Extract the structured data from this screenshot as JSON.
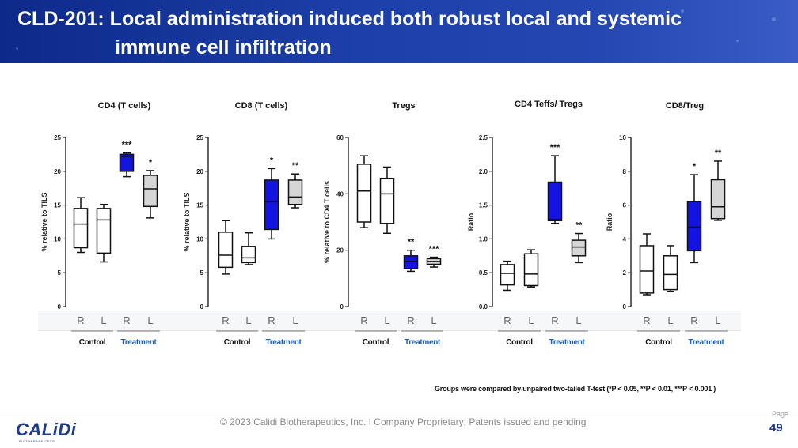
{
  "slide": {
    "title_line1": "CLD-201: Local administration induced both robust local and systemic",
    "title_line2": "immune cell infiltration",
    "footnote": "Groups were compared by unpaired two-tailed T-test (*P < 0.05, **P < 0.01, ***P < 0.001 )",
    "copyright": "© 2023 Calidi Biotherapeutics, Inc. I  Company Proprietary; Patents issued and pending",
    "page_label": "Page",
    "page_number": "49",
    "logo_text": "CALiDi",
    "logo_subtext": "BIOTHERAPEUTICS",
    "colors": {
      "banner": "#1d3fa8",
      "treatment_R": "#1414e0",
      "treatment_L": "#d6d6d6",
      "control": "#ffffff",
      "treatment_label": "#1a5fb4"
    }
  },
  "chart_data": [
    {
      "type": "box",
      "title": "CD4 (T cells)",
      "ylabel": "% relative to TILS",
      "ylim": [
        0,
        25
      ],
      "yticks": [
        0,
        5,
        10,
        15,
        20,
        25
      ],
      "groups": [
        "Control",
        "Treatment"
      ],
      "categories": [
        "R",
        "L",
        "R",
        "L"
      ],
      "boxes": [
        {
          "group": "Control",
          "cat": "R",
          "min": 8,
          "q1": 8.7,
          "median": 12.2,
          "q3": 14.5,
          "max": 16.1,
          "sig": ""
        },
        {
          "group": "Control",
          "cat": "L",
          "min": 6.6,
          "q1": 7.9,
          "median": 12.8,
          "q3": 14.5,
          "max": 15.1,
          "sig": ""
        },
        {
          "group": "Treatment",
          "cat": "R",
          "min": 19.2,
          "q1": 20,
          "median": 22.2,
          "q3": 22.5,
          "max": 22.7,
          "sig": "***"
        },
        {
          "group": "Treatment",
          "cat": "L",
          "min": 13.1,
          "q1": 14.8,
          "median": 17.4,
          "q3": 19.4,
          "max": 20.1,
          "sig": "*"
        }
      ]
    },
    {
      "type": "box",
      "title": "CD8 (T cells)",
      "ylabel": "% relative to TILS",
      "ylim": [
        0,
        25
      ],
      "yticks": [
        0,
        5,
        10,
        15,
        20,
        25
      ],
      "groups": [
        "Control",
        "Treatment"
      ],
      "categories": [
        "R",
        "L",
        "R",
        "L"
      ],
      "boxes": [
        {
          "group": "Control",
          "cat": "R",
          "min": 4.8,
          "q1": 5.8,
          "median": 7.6,
          "q3": 11,
          "max": 12.7,
          "sig": ""
        },
        {
          "group": "Control",
          "cat": "L",
          "min": 6.2,
          "q1": 6.5,
          "median": 7.2,
          "q3": 8.9,
          "max": 10.9,
          "sig": ""
        },
        {
          "group": "Treatment",
          "cat": "R",
          "min": 10,
          "q1": 11.4,
          "median": 15.5,
          "q3": 18.7,
          "max": 20.4,
          "sig": "*"
        },
        {
          "group": "Treatment",
          "cat": "L",
          "min": 14.6,
          "q1": 15.1,
          "median": 16.2,
          "q3": 18.7,
          "max": 19.6,
          "sig": "**"
        }
      ]
    },
    {
      "type": "box",
      "title": "Tregs",
      "ylabel": "% relative to CD4 T cells",
      "ylim": [
        0,
        60
      ],
      "yticks": [
        0,
        20,
        40,
        60
      ],
      "groups": [
        "Control",
        "Treatment"
      ],
      "categories": [
        "R",
        "L",
        "R",
        "L"
      ],
      "boxes": [
        {
          "group": "Control",
          "cat": "R",
          "min": 28,
          "q1": 30,
          "median": 41,
          "q3": 50.5,
          "max": 53.5,
          "sig": ""
        },
        {
          "group": "Control",
          "cat": "L",
          "min": 26,
          "q1": 29.5,
          "median": 40,
          "q3": 45.5,
          "max": 49.5,
          "sig": ""
        },
        {
          "group": "Treatment",
          "cat": "R",
          "min": 12.5,
          "q1": 13.5,
          "median": 16,
          "q3": 18,
          "max": 20,
          "sig": "**"
        },
        {
          "group": "Treatment",
          "cat": "L",
          "min": 14,
          "q1": 15,
          "median": 16,
          "q3": 17,
          "max": 17.5,
          "sig": "***"
        }
      ]
    },
    {
      "type": "box",
      "title": "CD4 Teffs/ Tregs",
      "ylabel": "Ratio",
      "ylim": [
        0,
        2.5
      ],
      "yticks": [
        0,
        0.5,
        1.0,
        1.5,
        2.0,
        2.5
      ],
      "ytick_labels": [
        "0.0",
        "0.5",
        "1.0",
        "1.5",
        "2.0",
        "2.5"
      ],
      "groups": [
        "Control",
        "Treatment"
      ],
      "categories": [
        "R",
        "L",
        "R",
        "L"
      ],
      "boxes": [
        {
          "group": "Control",
          "cat": "R",
          "min": 0.24,
          "q1": 0.32,
          "median": 0.49,
          "q3": 0.62,
          "max": 0.67,
          "sig": ""
        },
        {
          "group": "Control",
          "cat": "L",
          "min": 0.29,
          "q1": 0.31,
          "median": 0.48,
          "q3": 0.78,
          "max": 0.84,
          "sig": ""
        },
        {
          "group": "Treatment",
          "cat": "R",
          "min": 1.23,
          "q1": 1.27,
          "median": 1.29,
          "q3": 1.84,
          "max": 2.23,
          "sig": "***"
        },
        {
          "group": "Treatment",
          "cat": "L",
          "min": 0.65,
          "q1": 0.75,
          "median": 0.88,
          "q3": 0.98,
          "max": 1.08,
          "sig": "**"
        }
      ]
    },
    {
      "type": "box",
      "title": "CD8/Treg",
      "ylabel": "Ratio",
      "ylim": [
        0,
        10
      ],
      "yticks": [
        0,
        2,
        4,
        6,
        8,
        10
      ],
      "groups": [
        "Control",
        "Treatment"
      ],
      "categories": [
        "R",
        "L",
        "R",
        "L"
      ],
      "boxes": [
        {
          "group": "Control",
          "cat": "R",
          "min": 0.7,
          "q1": 0.8,
          "median": 2.1,
          "q3": 3.6,
          "max": 4.3,
          "sig": ""
        },
        {
          "group": "Control",
          "cat": "L",
          "min": 0.9,
          "q1": 1.0,
          "median": 1.9,
          "q3": 3.0,
          "max": 3.6,
          "sig": ""
        },
        {
          "group": "Treatment",
          "cat": "R",
          "min": 2.6,
          "q1": 3.3,
          "median": 4.7,
          "q3": 6.2,
          "max": 7.8,
          "sig": "*"
        },
        {
          "group": "Treatment",
          "cat": "L",
          "min": 5.1,
          "q1": 5.2,
          "median": 5.9,
          "q3": 7.5,
          "max": 8.6,
          "sig": "**"
        }
      ]
    }
  ]
}
